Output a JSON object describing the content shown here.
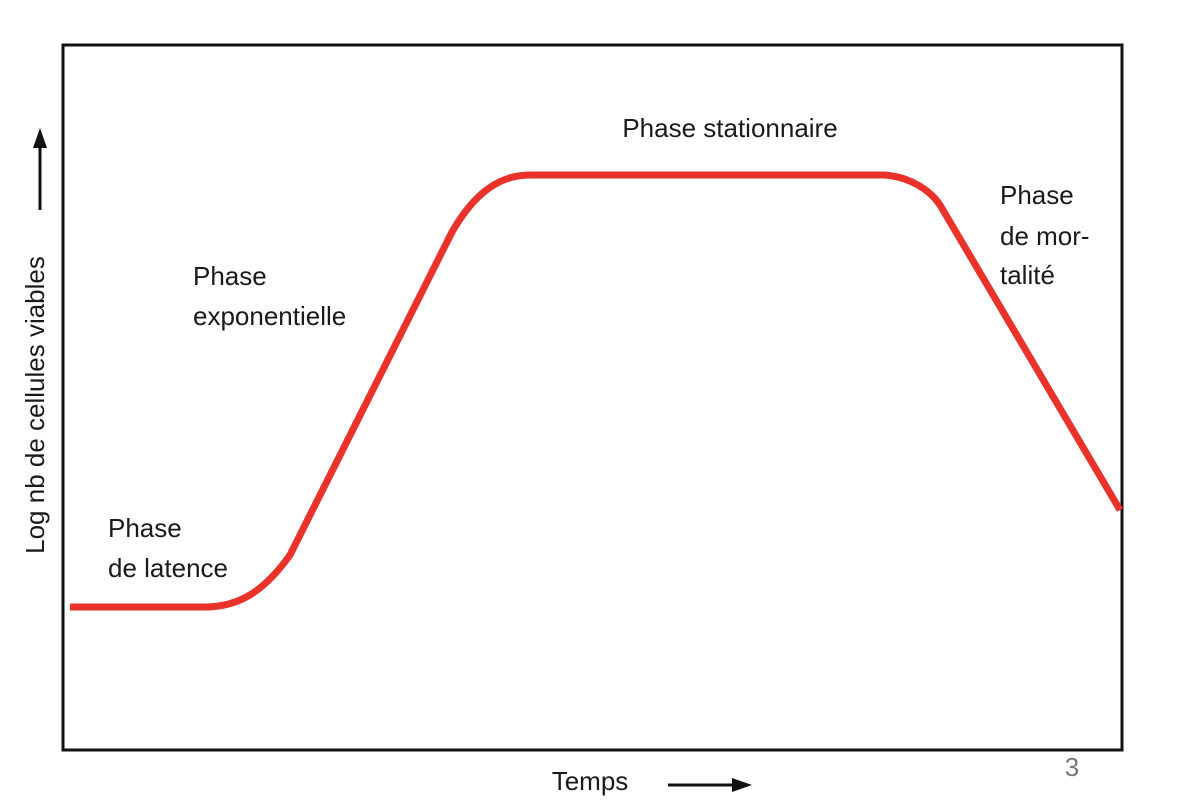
{
  "axes": {
    "y_label": "Log nb de cellules viables",
    "x_label": "Temps"
  },
  "phases": [
    {
      "lines": [
        "Phase",
        "de latence"
      ]
    },
    {
      "lines": [
        "Phase",
        "exponentielle"
      ]
    },
    {
      "lines": [
        "Phase stationnaire"
      ]
    },
    {
      "lines": [
        "Phase",
        "de mor-",
        "talité"
      ]
    }
  ],
  "page_number": "3"
}
